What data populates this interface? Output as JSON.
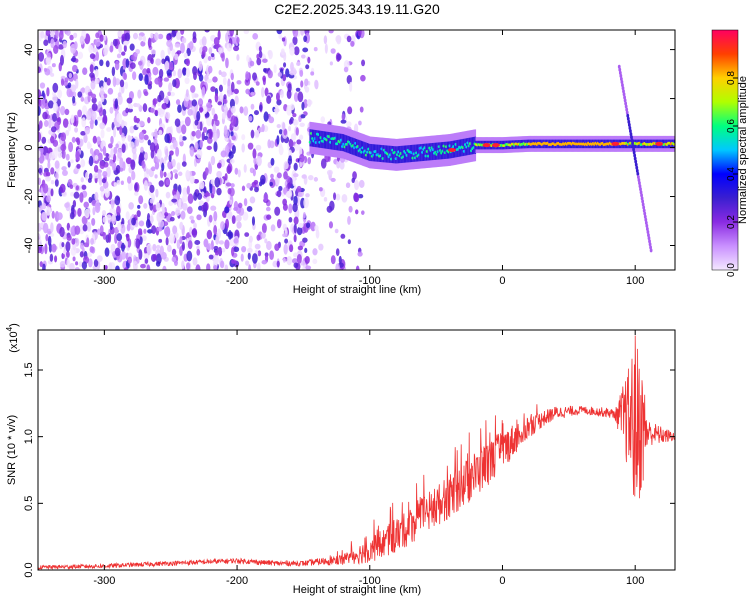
{
  "title": "C2E2.2025.343.19.11.G20",
  "chart_data": [
    {
      "type": "heatmap",
      "name": "spectrogram",
      "xlabel": "Height of straight line (km)",
      "ylabel": "Frequency (Hz)",
      "xlim": [
        -350,
        130
      ],
      "ylim": [
        -50,
        48
      ],
      "xticks": [
        -300,
        -200,
        -100,
        0,
        100
      ],
      "xtick_labels": [
        "-300",
        "-200",
        "-100",
        "0",
        "100"
      ],
      "yticks": [
        -40,
        -20,
        0,
        20,
        40
      ],
      "ytick_labels": [
        "-40",
        "-20",
        "0",
        "20",
        "40"
      ],
      "colorbar": {
        "label": "Normalized spectral amplitude",
        "range": [
          0,
          1
        ],
        "ticks": [
          0.0,
          0.2,
          0.4,
          0.6,
          0.8
        ],
        "tick_labels": [
          "0.0",
          "0.2",
          "0.4",
          "0.6",
          "0.8"
        ],
        "colors": [
          "#f4e8ff",
          "#c990ff",
          "#8a2be2",
          "#3a1fd0",
          "#0000ff",
          "#00c8ff",
          "#00ff80",
          "#b0ff00",
          "#ffd000",
          "#ff4000",
          "#ff0060"
        ]
      },
      "noise_region_end_km": -145,
      "signal_start_km": -145,
      "ridge_points": [
        [
          -145,
          4
        ],
        [
          -120,
          2
        ],
        [
          -100,
          -2
        ],
        [
          -80,
          -3
        ],
        [
          -60,
          -2
        ],
        [
          -40,
          -1
        ],
        [
          -20,
          1
        ],
        [
          0,
          1
        ],
        [
          20,
          1.5
        ],
        [
          40,
          1.5
        ],
        [
          60,
          1.5
        ],
        [
          80,
          1.5
        ],
        [
          100,
          1.5
        ],
        [
          130,
          1.5
        ]
      ],
      "spur_line": [
        [
          88,
          33
        ],
        [
          112,
          -42
        ]
      ]
    },
    {
      "type": "line",
      "name": "snr",
      "xlabel": "Height of straight line (km)",
      "ylabel": "SNR (10 * v/v)",
      "y_exponent_label": "(x10",
      "y_exponent": "4",
      "xlim": [
        -350,
        130
      ],
      "ylim": [
        0,
        1.8
      ],
      "xticks": [
        -300,
        -200,
        -100,
        0,
        100
      ],
      "xtick_labels": [
        "-300",
        "-200",
        "-100",
        "0",
        "100"
      ],
      "yticks": [
        0.0,
        0.5,
        1.0,
        1.5
      ],
      "ytick_labels": [
        "0.0",
        "0.5",
        "1.0",
        "1.5"
      ],
      "line_color": "#ee3333",
      "envelope_x": [
        -350,
        -300,
        -250,
        -200,
        -170,
        -150,
        -120,
        -100,
        -80,
        -60,
        -40,
        -20,
        0,
        20,
        40,
        60,
        80,
        90,
        100,
        110,
        120,
        130
      ],
      "envelope_y": [
        0.02,
        0.03,
        0.05,
        0.07,
        0.05,
        0.05,
        0.08,
        0.15,
        0.25,
        0.4,
        0.55,
        0.72,
        0.9,
        1.08,
        1.18,
        1.2,
        1.18,
        1.15,
        1.1,
        1.03,
        1.01,
        1.0
      ],
      "noise_amp_x": [
        -350,
        -150,
        -120,
        -100,
        -60,
        -20,
        0,
        30,
        60,
        85,
        95,
        100,
        105,
        110,
        130
      ],
      "noise_amp_y": [
        0.015,
        0.02,
        0.04,
        0.1,
        0.15,
        0.18,
        0.15,
        0.06,
        0.03,
        0.04,
        0.4,
        0.7,
        0.5,
        0.1,
        0.03
      ]
    }
  ]
}
